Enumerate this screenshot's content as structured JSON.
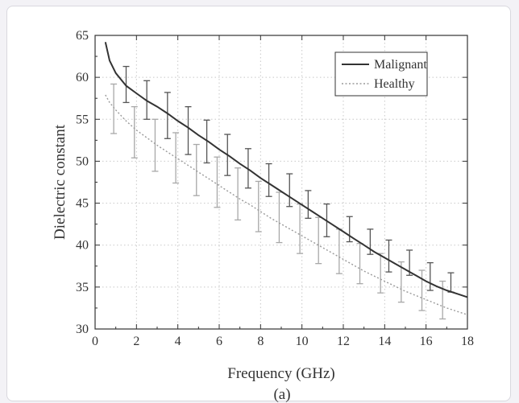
{
  "chart_data": {
    "type": "line",
    "panel_label": "(a)",
    "xlabel": "Frequency (GHz)",
    "ylabel": "Dielectric constant",
    "xlim": [
      0,
      18
    ],
    "ylim": [
      30,
      65
    ],
    "xticks": [
      0,
      2,
      4,
      6,
      8,
      10,
      12,
      14,
      16,
      18
    ],
    "yticks": [
      30,
      35,
      40,
      45,
      50,
      55,
      60,
      65
    ],
    "grid": true,
    "legend_position": "top-right",
    "series": [
      {
        "name": "Malignant",
        "style": "solid",
        "color": "#333333",
        "x": [
          0.5,
          0.7,
          1.0,
          1.5,
          2.0,
          2.5,
          3.0,
          3.5,
          4.0,
          4.5,
          5.0,
          5.5,
          6.0,
          6.5,
          7.0,
          7.5,
          8.0,
          8.5,
          9.0,
          9.5,
          10.0,
          10.5,
          11.0,
          11.5,
          12.0,
          12.5,
          13.0,
          13.5,
          14.0,
          14.5,
          15.0,
          15.5,
          16.0,
          16.5,
          17.0,
          17.5,
          18.0
        ],
        "y": [
          64.2,
          62.0,
          60.5,
          59.0,
          58.1,
          57.2,
          56.5,
          55.7,
          54.8,
          54.0,
          53.1,
          52.3,
          51.4,
          50.6,
          49.7,
          48.9,
          48.0,
          47.2,
          46.4,
          45.6,
          44.8,
          44.0,
          43.2,
          42.4,
          41.6,
          40.8,
          40.0,
          39.2,
          38.5,
          37.8,
          37.1,
          36.4,
          35.7,
          35.1,
          34.6,
          34.2,
          33.8
        ]
      },
      {
        "name": "Healthy",
        "style": "dotted",
        "color": "#9a9a9a",
        "x": [
          0.5,
          0.7,
          1.0,
          1.5,
          2.0,
          2.5,
          3.0,
          3.5,
          4.0,
          4.5,
          5.0,
          5.5,
          6.0,
          6.5,
          7.0,
          7.5,
          8.0,
          8.5,
          9.0,
          9.5,
          10.0,
          10.5,
          11.0,
          11.5,
          12.0,
          12.5,
          13.0,
          13.5,
          14.0,
          14.5,
          15.0,
          15.5,
          16.0,
          16.5,
          17.0,
          17.5,
          18.0
        ],
        "y": [
          57.9,
          57.0,
          56.1,
          54.8,
          53.7,
          52.8,
          51.9,
          51.1,
          50.3,
          49.5,
          48.7,
          47.9,
          47.1,
          46.3,
          45.5,
          44.8,
          44.0,
          43.2,
          42.5,
          41.8,
          41.1,
          40.4,
          39.7,
          39.0,
          38.3,
          37.6,
          36.9,
          36.3,
          35.7,
          35.1,
          34.5,
          34.0,
          33.5,
          33.0,
          32.5,
          32.1,
          31.7
        ]
      }
    ],
    "error_bars": [
      {
        "series": "Malignant",
        "x": [
          1.5,
          2.5,
          3.5,
          4.5,
          5.4,
          6.4,
          7.4,
          8.4,
          9.4,
          10.3,
          11.2,
          12.3,
          13.3,
          14.2,
          15.2,
          16.2,
          17.2
        ],
        "low": [
          57.0,
          55.0,
          52.7,
          50.8,
          49.8,
          48.3,
          46.8,
          45.8,
          44.6,
          43.2,
          41.0,
          40.4,
          38.9,
          36.8,
          36.4,
          34.6,
          34.4
        ],
        "high": [
          61.3,
          59.6,
          58.2,
          56.5,
          54.9,
          53.2,
          51.5,
          49.7,
          48.5,
          46.5,
          44.9,
          43.4,
          41.9,
          40.6,
          39.4,
          37.9,
          36.7
        ]
      },
      {
        "series": "Healthy",
        "x": [
          0.9,
          1.9,
          2.9,
          3.9,
          4.9,
          5.9,
          6.9,
          7.9,
          8.9,
          9.9,
          10.8,
          11.8,
          12.8,
          13.8,
          14.8,
          15.8,
          16.8
        ],
        "low": [
          53.3,
          50.4,
          48.8,
          47.4,
          45.9,
          44.5,
          43.0,
          41.6,
          40.3,
          39.0,
          37.8,
          36.6,
          35.4,
          34.3,
          33.2,
          32.2,
          31.2
        ],
        "high": [
          59.2,
          56.5,
          55.0,
          53.4,
          52.0,
          50.5,
          49.2,
          47.6,
          46.3,
          44.9,
          43.3,
          41.9,
          40.2,
          39.0,
          38.0,
          37.0,
          35.7
        ]
      }
    ]
  }
}
